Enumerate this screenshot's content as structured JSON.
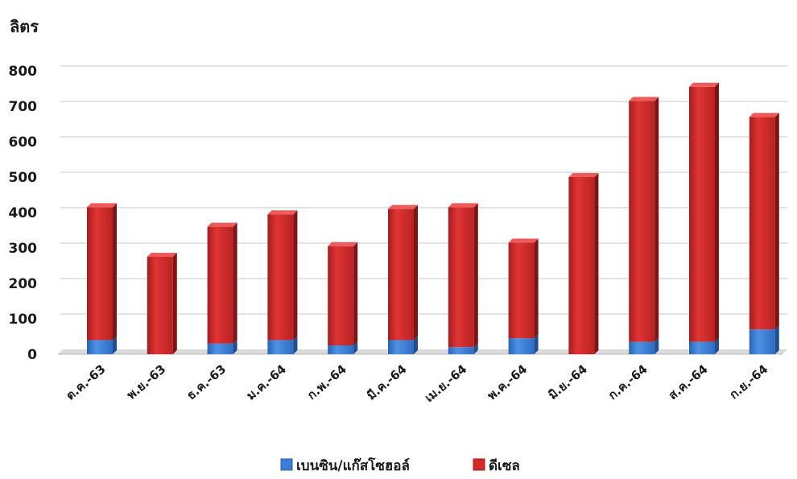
{
  "chart_data": {
    "type": "bar",
    "stacked": true,
    "ylabel": "ลิตร",
    "ylim": [
      0,
      800
    ],
    "yticks": [
      0,
      100,
      200,
      300,
      400,
      500,
      600,
      700,
      800
    ],
    "grid": true,
    "legend_position": "bottom",
    "categories": [
      "ต.ค.-63",
      "พ.ย.-63",
      "ธ.ค.-63",
      "ม.ค.-64",
      "ก.พ.-64",
      "มี.ค.-64",
      "เม.ย.-64",
      "พ.ค.-64",
      "มิ.ย.-64",
      "ก.ค.-64",
      "ส.ค.-64",
      "ก.ย.-64"
    ],
    "series": [
      {
        "name": "เบนซิน/แก๊สโซฮอล์",
        "color": "#3d7fd6",
        "values": [
          40,
          0,
          30,
          40,
          25,
          40,
          20,
          45,
          0,
          35,
          35,
          70
        ]
      },
      {
        "name": "ดีเซล",
        "color": "#d42a2a",
        "values": [
          375,
          275,
          330,
          355,
          280,
          370,
          395,
          270,
          500,
          680,
          720,
          600
        ]
      }
    ]
  }
}
